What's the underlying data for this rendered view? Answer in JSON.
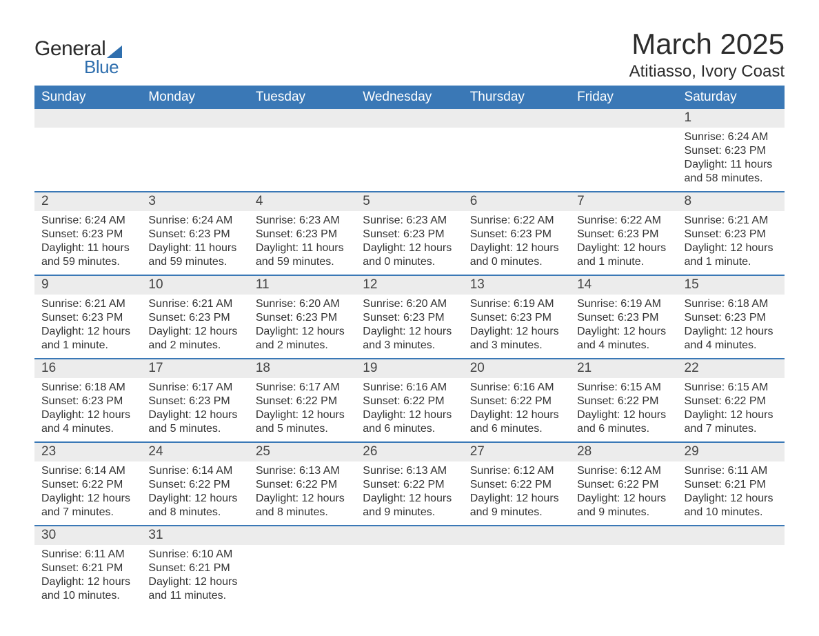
{
  "logo": {
    "text_general": "General",
    "text_blue": "Blue",
    "sail_color": "#2f6fae",
    "general_color": "#2c2c2c",
    "blue_color": "#2f6fae"
  },
  "header": {
    "title": "March 2025",
    "location": "Atitiasso, Ivory Coast"
  },
  "palette": {
    "header_bg": "#3a78b6",
    "header_fg": "#ffffff",
    "row_separator": "#3a78b6",
    "daynum_bg": "#ececec",
    "body_text": "#333333",
    "page_bg": "#ffffff"
  },
  "typography": {
    "title_fontsize": 42,
    "location_fontsize": 24,
    "weekday_fontsize": 19,
    "daynum_fontsize": 19,
    "body_fontsize": 16
  },
  "weekdays": [
    "Sunday",
    "Monday",
    "Tuesday",
    "Wednesday",
    "Thursday",
    "Friday",
    "Saturday"
  ],
  "weeks": [
    [
      {
        "day": null
      },
      {
        "day": null
      },
      {
        "day": null
      },
      {
        "day": null
      },
      {
        "day": null
      },
      {
        "day": null
      },
      {
        "day": "1",
        "sunrise": "Sunrise: 6:24 AM",
        "sunset": "Sunset: 6:23 PM",
        "daylight1": "Daylight: 11 hours",
        "daylight2": "and 58 minutes."
      }
    ],
    [
      {
        "day": "2",
        "sunrise": "Sunrise: 6:24 AM",
        "sunset": "Sunset: 6:23 PM",
        "daylight1": "Daylight: 11 hours",
        "daylight2": "and 59 minutes."
      },
      {
        "day": "3",
        "sunrise": "Sunrise: 6:24 AM",
        "sunset": "Sunset: 6:23 PM",
        "daylight1": "Daylight: 11 hours",
        "daylight2": "and 59 minutes."
      },
      {
        "day": "4",
        "sunrise": "Sunrise: 6:23 AM",
        "sunset": "Sunset: 6:23 PM",
        "daylight1": "Daylight: 11 hours",
        "daylight2": "and 59 minutes."
      },
      {
        "day": "5",
        "sunrise": "Sunrise: 6:23 AM",
        "sunset": "Sunset: 6:23 PM",
        "daylight1": "Daylight: 12 hours",
        "daylight2": "and 0 minutes."
      },
      {
        "day": "6",
        "sunrise": "Sunrise: 6:22 AM",
        "sunset": "Sunset: 6:23 PM",
        "daylight1": "Daylight: 12 hours",
        "daylight2": "and 0 minutes."
      },
      {
        "day": "7",
        "sunrise": "Sunrise: 6:22 AM",
        "sunset": "Sunset: 6:23 PM",
        "daylight1": "Daylight: 12 hours",
        "daylight2": "and 1 minute."
      },
      {
        "day": "8",
        "sunrise": "Sunrise: 6:21 AM",
        "sunset": "Sunset: 6:23 PM",
        "daylight1": "Daylight: 12 hours",
        "daylight2": "and 1 minute."
      }
    ],
    [
      {
        "day": "9",
        "sunrise": "Sunrise: 6:21 AM",
        "sunset": "Sunset: 6:23 PM",
        "daylight1": "Daylight: 12 hours",
        "daylight2": "and 1 minute."
      },
      {
        "day": "10",
        "sunrise": "Sunrise: 6:21 AM",
        "sunset": "Sunset: 6:23 PM",
        "daylight1": "Daylight: 12 hours",
        "daylight2": "and 2 minutes."
      },
      {
        "day": "11",
        "sunrise": "Sunrise: 6:20 AM",
        "sunset": "Sunset: 6:23 PM",
        "daylight1": "Daylight: 12 hours",
        "daylight2": "and 2 minutes."
      },
      {
        "day": "12",
        "sunrise": "Sunrise: 6:20 AM",
        "sunset": "Sunset: 6:23 PM",
        "daylight1": "Daylight: 12 hours",
        "daylight2": "and 3 minutes."
      },
      {
        "day": "13",
        "sunrise": "Sunrise: 6:19 AM",
        "sunset": "Sunset: 6:23 PM",
        "daylight1": "Daylight: 12 hours",
        "daylight2": "and 3 minutes."
      },
      {
        "day": "14",
        "sunrise": "Sunrise: 6:19 AM",
        "sunset": "Sunset: 6:23 PM",
        "daylight1": "Daylight: 12 hours",
        "daylight2": "and 4 minutes."
      },
      {
        "day": "15",
        "sunrise": "Sunrise: 6:18 AM",
        "sunset": "Sunset: 6:23 PM",
        "daylight1": "Daylight: 12 hours",
        "daylight2": "and 4 minutes."
      }
    ],
    [
      {
        "day": "16",
        "sunrise": "Sunrise: 6:18 AM",
        "sunset": "Sunset: 6:23 PM",
        "daylight1": "Daylight: 12 hours",
        "daylight2": "and 4 minutes."
      },
      {
        "day": "17",
        "sunrise": "Sunrise: 6:17 AM",
        "sunset": "Sunset: 6:23 PM",
        "daylight1": "Daylight: 12 hours",
        "daylight2": "and 5 minutes."
      },
      {
        "day": "18",
        "sunrise": "Sunrise: 6:17 AM",
        "sunset": "Sunset: 6:22 PM",
        "daylight1": "Daylight: 12 hours",
        "daylight2": "and 5 minutes."
      },
      {
        "day": "19",
        "sunrise": "Sunrise: 6:16 AM",
        "sunset": "Sunset: 6:22 PM",
        "daylight1": "Daylight: 12 hours",
        "daylight2": "and 6 minutes."
      },
      {
        "day": "20",
        "sunrise": "Sunrise: 6:16 AM",
        "sunset": "Sunset: 6:22 PM",
        "daylight1": "Daylight: 12 hours",
        "daylight2": "and 6 minutes."
      },
      {
        "day": "21",
        "sunrise": "Sunrise: 6:15 AM",
        "sunset": "Sunset: 6:22 PM",
        "daylight1": "Daylight: 12 hours",
        "daylight2": "and 6 minutes."
      },
      {
        "day": "22",
        "sunrise": "Sunrise: 6:15 AM",
        "sunset": "Sunset: 6:22 PM",
        "daylight1": "Daylight: 12 hours",
        "daylight2": "and 7 minutes."
      }
    ],
    [
      {
        "day": "23",
        "sunrise": "Sunrise: 6:14 AM",
        "sunset": "Sunset: 6:22 PM",
        "daylight1": "Daylight: 12 hours",
        "daylight2": "and 7 minutes."
      },
      {
        "day": "24",
        "sunrise": "Sunrise: 6:14 AM",
        "sunset": "Sunset: 6:22 PM",
        "daylight1": "Daylight: 12 hours",
        "daylight2": "and 8 minutes."
      },
      {
        "day": "25",
        "sunrise": "Sunrise: 6:13 AM",
        "sunset": "Sunset: 6:22 PM",
        "daylight1": "Daylight: 12 hours",
        "daylight2": "and 8 minutes."
      },
      {
        "day": "26",
        "sunrise": "Sunrise: 6:13 AM",
        "sunset": "Sunset: 6:22 PM",
        "daylight1": "Daylight: 12 hours",
        "daylight2": "and 9 minutes."
      },
      {
        "day": "27",
        "sunrise": "Sunrise: 6:12 AM",
        "sunset": "Sunset: 6:22 PM",
        "daylight1": "Daylight: 12 hours",
        "daylight2": "and 9 minutes."
      },
      {
        "day": "28",
        "sunrise": "Sunrise: 6:12 AM",
        "sunset": "Sunset: 6:22 PM",
        "daylight1": "Daylight: 12 hours",
        "daylight2": "and 9 minutes."
      },
      {
        "day": "29",
        "sunrise": "Sunrise: 6:11 AM",
        "sunset": "Sunset: 6:21 PM",
        "daylight1": "Daylight: 12 hours",
        "daylight2": "and 10 minutes."
      }
    ],
    [
      {
        "day": "30",
        "sunrise": "Sunrise: 6:11 AM",
        "sunset": "Sunset: 6:21 PM",
        "daylight1": "Daylight: 12 hours",
        "daylight2": "and 10 minutes."
      },
      {
        "day": "31",
        "sunrise": "Sunrise: 6:10 AM",
        "sunset": "Sunset: 6:21 PM",
        "daylight1": "Daylight: 12 hours",
        "daylight2": "and 11 minutes."
      },
      {
        "day": null
      },
      {
        "day": null
      },
      {
        "day": null
      },
      {
        "day": null
      },
      {
        "day": null
      }
    ]
  ]
}
